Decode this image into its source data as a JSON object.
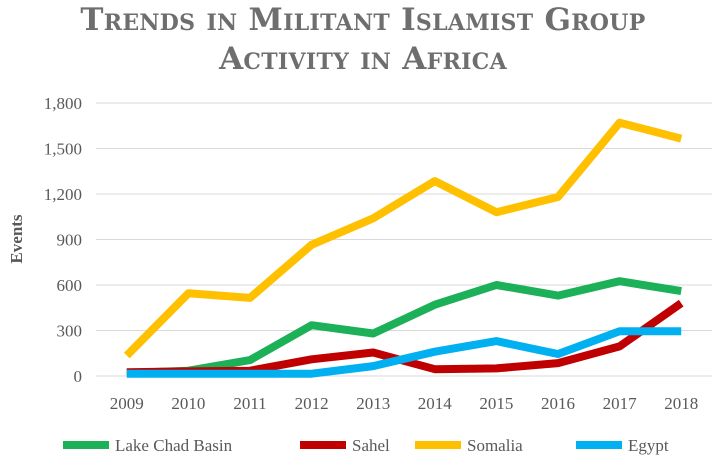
{
  "chart_data": {
    "type": "line",
    "title_lines": [
      "Trends in Militant Islamist Group",
      "Activity in Africa"
    ],
    "xlabel": "",
    "ylabel": "Events",
    "x": [
      2009,
      2010,
      2011,
      2012,
      2013,
      2014,
      2015,
      2016,
      2017,
      2018
    ],
    "x_tick_labels": [
      "2009",
      "2010",
      "2011",
      "2012",
      "2013",
      "2014",
      "2015",
      "2016",
      "2017",
      "2018"
    ],
    "ylim": [
      0,
      1800
    ],
    "y_ticks": [
      0,
      300,
      600,
      900,
      1200,
      1500,
      1800
    ],
    "y_tick_labels": [
      "0",
      "300",
      "600",
      "900",
      "1,200",
      "1,500",
      "1,800"
    ],
    "grid": "horizontal",
    "legend_position": "bottom",
    "series": [
      {
        "name": "Lake Chad Basin",
        "color": "#1cb158",
        "values": [
          20,
          35,
          105,
          335,
          280,
          470,
          600,
          530,
          625,
          560
        ]
      },
      {
        "name": "Sahel",
        "color": "#c00000",
        "values": [
          25,
          30,
          35,
          110,
          155,
          45,
          50,
          85,
          195,
          480
        ]
      },
      {
        "name": "Somalia",
        "color": "#ffc000",
        "values": [
          135,
          545,
          515,
          865,
          1040,
          1285,
          1080,
          1180,
          1670,
          1565
        ]
      },
      {
        "name": "Egypt",
        "color": "#00b0f0",
        "values": [
          15,
          15,
          15,
          15,
          65,
          160,
          230,
          145,
          295,
          295
        ]
      }
    ]
  }
}
